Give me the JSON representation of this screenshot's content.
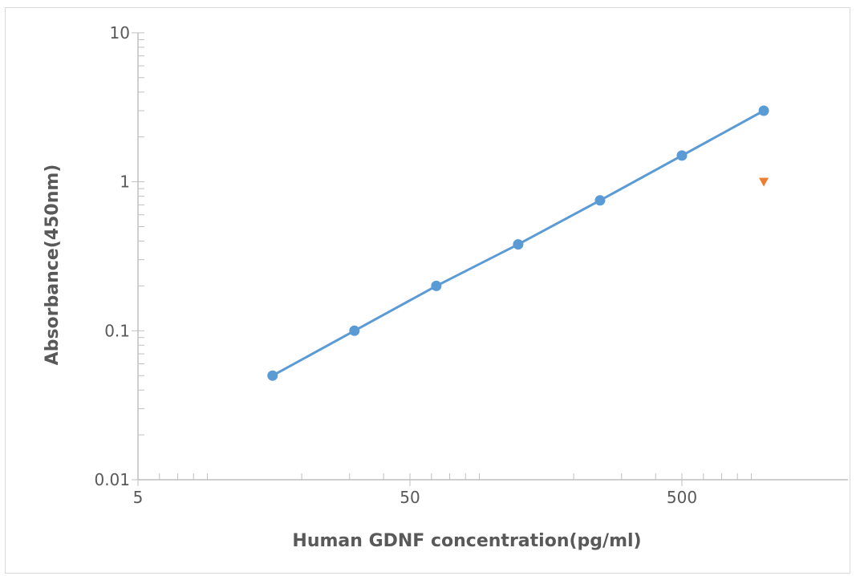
{
  "chart_data": {
    "type": "scatter",
    "title": "",
    "xlabel": "Human GDNF  concentration(pg/ml)",
    "ylabel": "Absorbance(450nm)",
    "xscale": "log",
    "yscale": "log",
    "xlim": [
      5,
      1000
    ],
    "ylim": [
      0.01,
      10
    ],
    "x_ticks": [
      5,
      50,
      500
    ],
    "x_tick_labels": [
      "5",
      "50",
      "500"
    ],
    "y_ticks": [
      0.01,
      0.1,
      1,
      10
    ],
    "y_tick_labels": [
      "0.01",
      "0.1",
      "1",
      "10"
    ],
    "grid": false,
    "legend": "none",
    "series": [
      {
        "color": "#5b9bd5",
        "marker": "circle",
        "line": true,
        "points": [
          {
            "x": 15.625,
            "y": 0.05
          },
          {
            "x": 31.25,
            "y": 0.1
          },
          {
            "x": 62.5,
            "y": 0.2
          },
          {
            "x": 125,
            "y": 0.38
          },
          {
            "x": 250,
            "y": 0.75
          },
          {
            "x": 500,
            "y": 1.5
          },
          {
            "x": 1000,
            "y": 3.0
          }
        ]
      },
      {
        "color": "#ed7d31",
        "marker": "triangle-down",
        "line": false,
        "points": [
          {
            "x": 1000,
            "y": 1.0
          }
        ]
      }
    ]
  }
}
